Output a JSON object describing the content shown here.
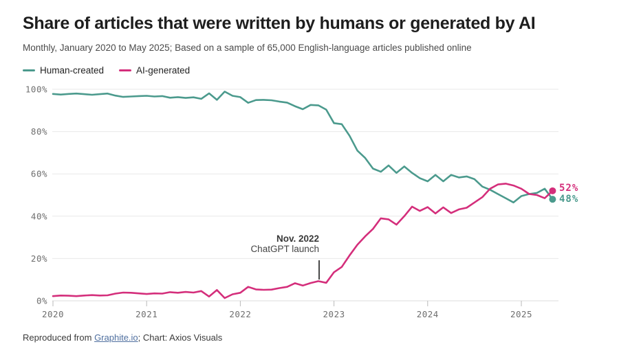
{
  "header": {
    "title": "Share of articles that were written by humans or generated by AI",
    "subtitle": "Monthly, January 2020 to May 2025; Based on a sample of 65,000 English-language articles published online"
  },
  "chart_data": {
    "type": "line",
    "x_monthly_start": "2020-01",
    "x_monthly_end": "2025-05",
    "x_tick_labels": [
      "2020",
      "2021",
      "2022",
      "2023",
      "2024",
      "2025"
    ],
    "y_tick_labels": [
      "0%",
      "20%",
      "40%",
      "60%",
      "80%",
      "100%"
    ],
    "ylim": [
      0,
      100
    ],
    "grid": true,
    "legend_position": "top-left",
    "series": [
      {
        "name": "Human-created",
        "color": "#4b9a8d",
        "end_label": "48%",
        "values": [
          97.8,
          97.5,
          97.8,
          98,
          97.7,
          97.4,
          97.7,
          98,
          97,
          96.4,
          96.6,
          96.8,
          96.9,
          96.6,
          96.8,
          96,
          96.3,
          95.9,
          96.2,
          95.5,
          98.1,
          95,
          98.9,
          96.9,
          96.3,
          93.6,
          94.9,
          95,
          94.8,
          94.2,
          93.7,
          92,
          90.6,
          92.6,
          92.4,
          90.4,
          84,
          83.5,
          78,
          71,
          67.5,
          62.5,
          61,
          64,
          60.5,
          63.5,
          60.5,
          58,
          56.5,
          59.5,
          56.5,
          59.5,
          58.3,
          58.8,
          57.5,
          54,
          52.5,
          50.5,
          48.5,
          46.5,
          49.5,
          50.5,
          51,
          53,
          48
        ]
      },
      {
        "name": "AI-generated",
        "color": "#d42e7b",
        "end_label": "52%",
        "values": [
          2.2,
          2.5,
          2.4,
          2.2,
          2.5,
          2.7,
          2.5,
          2.6,
          3.4,
          3.9,
          3.8,
          3.5,
          3.2,
          3.5,
          3.4,
          4.1,
          3.8,
          4.2,
          3.9,
          4.6,
          2,
          5.1,
          1.3,
          3.1,
          3.8,
          6.6,
          5.4,
          5.2,
          5.3,
          6,
          6.6,
          8.3,
          7.2,
          8.4,
          9.3,
          8.5,
          13.5,
          16,
          21.5,
          26.5,
          30.5,
          34,
          39,
          38.5,
          36,
          40,
          44.5,
          42.5,
          44.3,
          41.3,
          44.2,
          41.5,
          43.2,
          44,
          46.5,
          49,
          53,
          55,
          55.4,
          54.5,
          53,
          50.5,
          50,
          48.5,
          52
        ]
      }
    ],
    "annotation": {
      "line1": "Nov. 2022",
      "line2": "ChatGPT launch",
      "x": "2022-11"
    }
  },
  "footer": {
    "prefix": "Reproduced from ",
    "link": "Graphite.io",
    "suffix": "; Chart: Axios Visuals"
  }
}
